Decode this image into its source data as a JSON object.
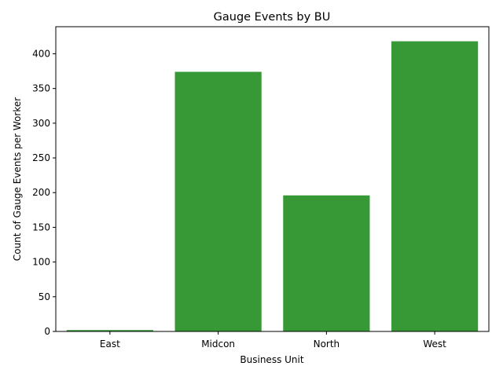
{
  "chart_data": {
    "type": "bar",
    "title": "Gauge Events by BU",
    "xlabel": "Business Unit",
    "ylabel": "Count of Gauge Events per Worker",
    "categories": [
      "East",
      "Midcon",
      "North",
      "West"
    ],
    "values": [
      2,
      374,
      196,
      418
    ],
    "ylim": [
      0,
      439
    ],
    "yticks": [
      0,
      50,
      100,
      150,
      200,
      250,
      300,
      350,
      400
    ],
    "bar_color": "#369936",
    "grid": false,
    "legend": "none"
  }
}
